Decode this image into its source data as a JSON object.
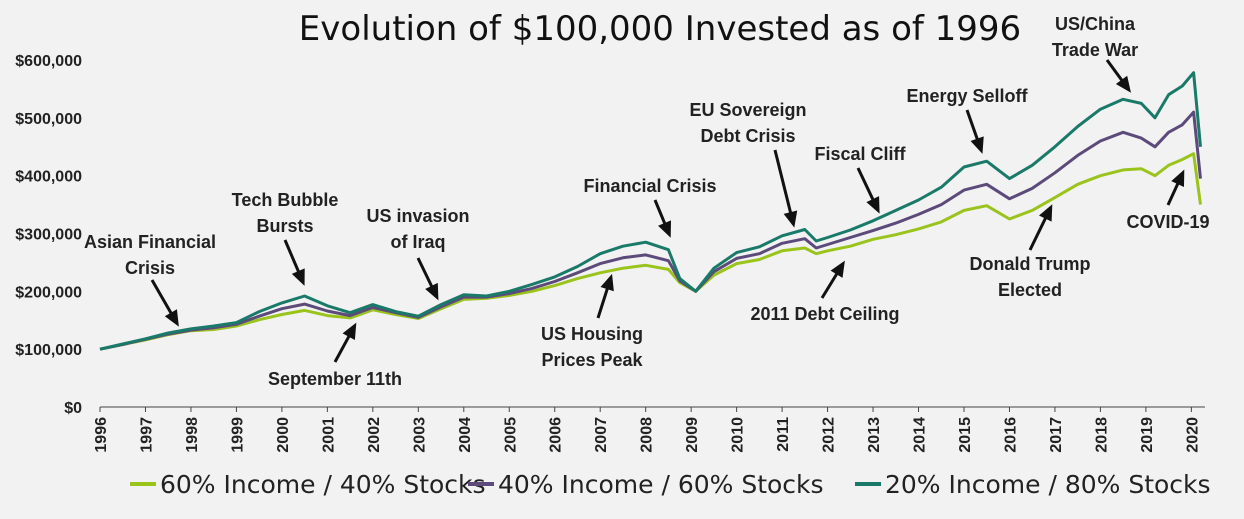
{
  "chart_data": {
    "type": "line",
    "title": "Evolution of $100,000 Invested as of 1996",
    "xlabel": "",
    "ylabel": "",
    "xlim": [
      1996,
      2020.3
    ],
    "ylim": [
      0,
      600000
    ],
    "y_ticks": [
      "$0",
      "$100,000",
      "$200,000",
      "$300,000",
      "$400,000",
      "$500,000",
      "$600,000"
    ],
    "y_tick_values": [
      0,
      100000,
      200000,
      300000,
      400000,
      500000,
      600000
    ],
    "x_ticks": [
      "1996",
      "1997",
      "1998",
      "1999",
      "2000",
      "2001",
      "2002",
      "2003",
      "2004",
      "2005",
      "2006",
      "2007",
      "2008",
      "2009",
      "2010",
      "2011",
      "2012",
      "2013",
      "2014",
      "2015",
      "2016",
      "2017",
      "2018",
      "2019",
      "2020"
    ],
    "x_tick_values": [
      1996,
      1997,
      1998,
      1999,
      2000,
      2001,
      2002,
      2003,
      2004,
      2005,
      2006,
      2007,
      2008,
      2009,
      2010,
      2011,
      2012,
      2013,
      2014,
      2015,
      2016,
      2017,
      2018,
      2019,
      2020
    ],
    "grid": false,
    "legend_placement": "bottom",
    "x": [
      1996,
      1996.5,
      1997,
      1997.5,
      1998,
      1998.5,
      1999,
      1999.5,
      2000,
      2000.5,
      2001,
      2001.5,
      2002,
      2002.5,
      2003,
      2003.5,
      2004,
      2004.5,
      2005,
      2005.5,
      2006,
      2006.5,
      2007,
      2007.5,
      2008,
      2008.5,
      2008.75,
      2009.1,
      2009.5,
      2010,
      2010.5,
      2011,
      2011.5,
      2011.75,
      2012,
      2012.5,
      2013,
      2013.5,
      2014,
      2014.5,
      2015,
      2015.5,
      2016,
      2016.5,
      2017,
      2017.5,
      2018,
      2018.5,
      2018.9,
      2019.2,
      2019.5,
      2019.8,
      2020.05,
      2020.2
    ],
    "series": [
      {
        "name": "60% Income / 40% Stocks",
        "color": "#9ac41c",
        "values": [
          100000,
          108000,
          116000,
          125000,
          132000,
          134000,
          140000,
          151000,
          160000,
          167000,
          158000,
          154000,
          168000,
          160000,
          153000,
          170000,
          186000,
          188000,
          193000,
          200000,
          210000,
          222000,
          232000,
          240000,
          245000,
          238000,
          215000,
          200000,
          228000,
          248000,
          255000,
          270000,
          275000,
          265000,
          270000,
          278000,
          290000,
          298000,
          308000,
          320000,
          340000,
          348000,
          325000,
          340000,
          362000,
          385000,
          400000,
          410000,
          412000,
          400000,
          418000,
          428000,
          438000,
          350000
        ]
      },
      {
        "name": "40% Income / 60% Stocks",
        "color": "#5c4a7a",
        "values": [
          100000,
          108000,
          117000,
          126000,
          133000,
          137000,
          143000,
          157000,
          170000,
          178000,
          166000,
          158000,
          172000,
          163000,
          155000,
          173000,
          190000,
          190000,
          196000,
          205000,
          217000,
          232000,
          248000,
          258000,
          263000,
          253000,
          218000,
          200000,
          234000,
          257000,
          265000,
          283000,
          291000,
          275000,
          281000,
          293000,
          305000,
          318000,
          333000,
          350000,
          375000,
          385000,
          360000,
          378000,
          405000,
          435000,
          460000,
          475000,
          465000,
          450000,
          475000,
          488000,
          510000,
          395000
        ]
      },
      {
        "name": "20% Income / 80% Stocks",
        "color": "#1a7a6a",
        "values": [
          100000,
          109000,
          118000,
          128000,
          135000,
          140000,
          146000,
          165000,
          180000,
          192000,
          175000,
          163000,
          177000,
          165000,
          157000,
          177000,
          194000,
          192000,
          200000,
          212000,
          225000,
          243000,
          265000,
          278000,
          285000,
          272000,
          222000,
          200000,
          240000,
          267000,
          277000,
          296000,
          307000,
          287000,
          293000,
          306000,
          322000,
          340000,
          358000,
          380000,
          415000,
          425000,
          395000,
          418000,
          450000,
          485000,
          515000,
          532000,
          525000,
          500000,
          540000,
          555000,
          578000,
          450000
        ]
      }
    ],
    "annotations": [
      {
        "lines": [
          "Asian Financial",
          "Crisis"
        ],
        "point": [
          1997.8,
          130000
        ]
      },
      {
        "lines": [
          "Tech Bubble",
          "Bursts"
        ],
        "point": [
          2000.55,
          200000
        ]
      },
      {
        "lines": [
          "September 11th"
        ],
        "point": [
          2001.7,
          155000
        ]
      },
      {
        "lines": [
          "US invasion",
          "of Iraq"
        ],
        "point": [
          2003.5,
          175000
        ]
      },
      {
        "lines": [
          "US Housing",
          "Prices Peak"
        ],
        "point": [
          2007.3,
          240000
        ]
      },
      {
        "lines": [
          "Financial Crisis"
        ],
        "point": [
          2008.6,
          283000
        ]
      },
      {
        "lines": [
          "EU Sovereign",
          "Debt Crisis"
        ],
        "point": [
          2011.3,
          300000
        ]
      },
      {
        "lines": [
          "2011 Debt Ceiling"
        ],
        "point": [
          2012.45,
          262000
        ]
      },
      {
        "lines": [
          "Fiscal Cliff"
        ],
        "point": [
          2013.2,
          325000
        ]
      },
      {
        "lines": [
          "Energy Selloff"
        ],
        "point": [
          2015.45,
          428000
        ]
      },
      {
        "lines": [
          "US/China",
          "Trade War"
        ],
        "point": [
          2018.75,
          535000
        ]
      },
      {
        "lines": [
          "Donald Trump",
          "Elected"
        ],
        "point": [
          2017.0,
          360000
        ]
      },
      {
        "lines": [
          "COVID-19"
        ],
        "point": [
          2019.9,
          420000
        ]
      }
    ]
  }
}
